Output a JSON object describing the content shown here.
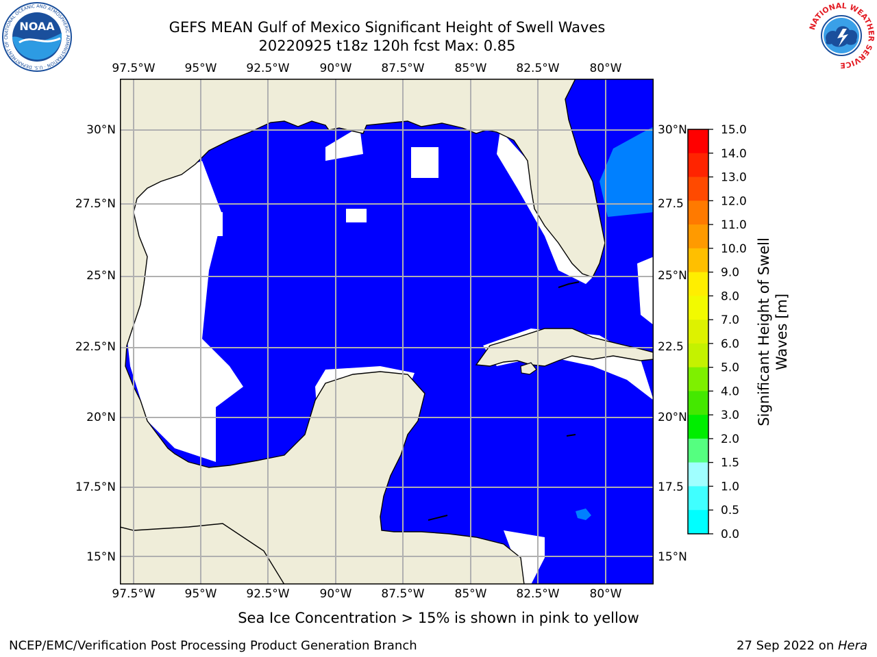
{
  "title": {
    "line1": "GEFS MEAN Gulf of Mexico Significant Height of Swell Waves",
    "line2": "20220925 t18z 120h fcst   Max: 0.85"
  },
  "map": {
    "lon_labels": [
      "97.5°W",
      "95°W",
      "92.5°W",
      "90°W",
      "87.5°W",
      "85°W",
      "82.5°W",
      "80°W"
    ],
    "lat_labels_left": [
      "30°N",
      "27.5°N",
      "25°N",
      "22.5°N",
      "20°N",
      "17.5°N",
      "15°N"
    ],
    "lat_labels_right": [
      "30°N",
      "27.5",
      "25°N",
      "22.5",
      "20°N",
      "17.5",
      "15°N"
    ],
    "colors": {
      "land": "#efedd9",
      "ocean_low": "#0000ff",
      "ocean_mid": "#0080ff",
      "grid": "#b0b0b0",
      "coast": "#000000"
    }
  },
  "colorbar": {
    "label": "Significant Height of Swell Waves [m]",
    "label_line1": "Significant Height of Swell",
    "label_line2": "Waves [m]",
    "ticks": [
      "15.0",
      "14.0",
      "13.0",
      "12.0",
      "11.0",
      "10.0",
      "9.0",
      "8.0",
      "7.0",
      "6.0",
      "5.0",
      "4.0",
      "3.0",
      "2.0",
      "1.5",
      "1.0",
      "0.5",
      "0.0"
    ],
    "colors": [
      "#ff0000",
      "#ff2400",
      "#ff4a00",
      "#ff7a00",
      "#ff9a00",
      "#ffbf00",
      "#ffee00",
      "#f2fa00",
      "#ddf200",
      "#c4f200",
      "#7ef000",
      "#44e800",
      "#00ee00",
      "#55ff80",
      "#a0ffff",
      "#40ffff",
      "#00ffff",
      "#0080ff",
      "#0000ff"
    ]
  },
  "footer": {
    "note": "Sea Ice Concentration > 15% is shown in pink to yellow",
    "org": "NCEP/EMC/Verification Post Processing Product Generation Branch",
    "date": "27 Sep 2022 on ",
    "machine": "Hera"
  },
  "logos": {
    "noaa_text": "NOAA",
    "noaa_ring": "NATIONAL OCEANIC AND ATMOSPHERIC ADMINISTRATION · U.S. DEPARTMENT OF COMMERCE",
    "nws_ring": "NATIONAL WEATHER SERVICE"
  }
}
